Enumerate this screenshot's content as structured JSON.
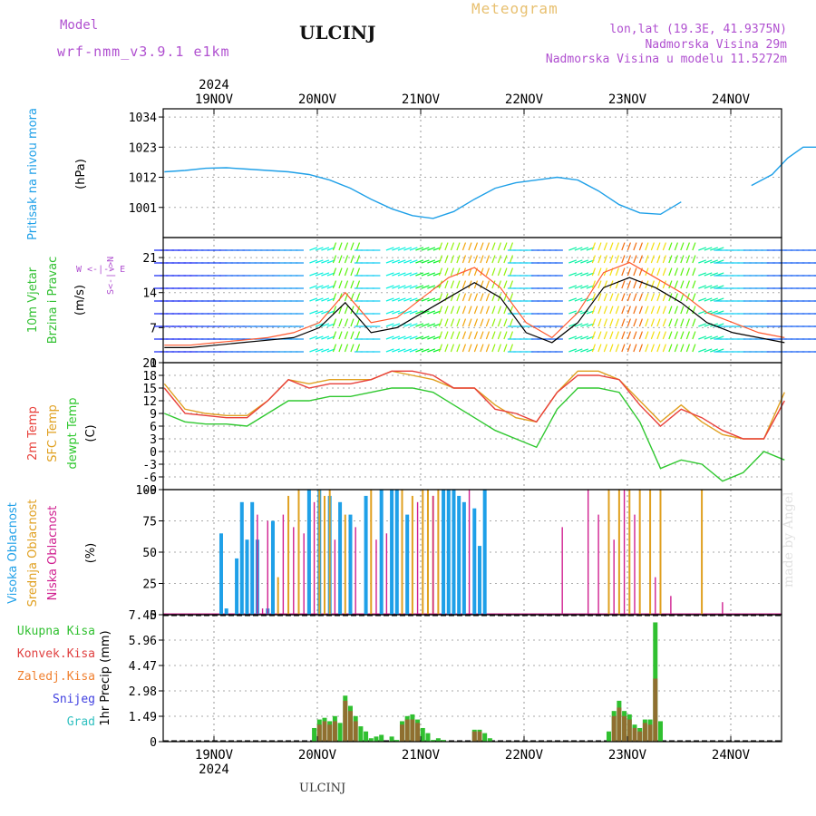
{
  "header": {
    "model_label": "Model",
    "model_name": "wrf-nmm_v3.9.1 e1km",
    "station": "ULCINJ",
    "meteogram": "Meteogram",
    "location": "lon,lat (19.3E, 41.9375N)",
    "elevation": "Nadmorska Visina 29m",
    "model_elevation": "Nadmorska Visina u modelu 11.5272m",
    "footer_station": "ULCINJ",
    "watermark": "made by Angel"
  },
  "colors": {
    "pressure": "#1fa0e8",
    "temp": "#e8403a",
    "sfc_temp": "#e0a020",
    "dewpt": "#30c830",
    "cloud_high": "#1fa0e8",
    "cloud_mid": "#e0a020",
    "cloud_low": "#d02090",
    "precip_total": "#30c030",
    "precip_conv": "#e04040",
    "header_purple": "#b050d0",
    "meteogram_gold": "#e8c070"
  },
  "chart_data": [
    {
      "type": "line",
      "id": "pressure",
      "y_labels": [
        "Pritisak na nivou mora",
        "(hPa)"
      ],
      "ylim": [
        990,
        1037
      ],
      "yticks": [
        1001,
        1012,
        1023,
        1034
      ],
      "x_day": [
        0,
        0.2,
        0.4,
        0.6,
        0.8,
        1.0,
        1.2,
        1.4,
        1.6,
        1.8,
        2.0,
        2.2,
        2.4,
        2.6,
        2.8,
        3.0,
        3.2,
        3.4,
        3.6,
        3.8,
        4.0,
        4.2,
        4.4,
        4.6,
        4.8,
        5.0,
        5.2,
        5.4,
        5.6,
        5.8,
        6.0
      ],
      "values": [
        1014,
        1014.5,
        1015.3,
        1015.5,
        1015,
        1014.5,
        1014,
        1013,
        1011,
        1008,
        1004,
        1000.5,
        998,
        997,
        999.5,
        1004,
        1008,
        1010,
        1011,
        1012,
        1011,
        1007,
        1002,
        999,
        998.5,
        1003,
        1009,
        1013,
        1019,
        1025,
        1030
      ],
      "x_tail": [
        5.2,
        5.4,
        5.55,
        5.7,
        5.9,
        6.1,
        6.3,
        6.5,
        6.85
      ],
      "values_tail": [
        1009,
        1013,
        1019,
        1023,
        1023,
        1029,
        1032,
        1033,
        1033
      ]
    },
    {
      "type": "line",
      "id": "wind",
      "y_labels": [
        "10m Vjetar",
        "Brzina i Pravac",
        "(m/s)"
      ],
      "ylim": [
        0,
        25
      ],
      "yticks": [
        0,
        7,
        14,
        21
      ],
      "compass": "W <-|-> E",
      "compass_v": "S<-|->N",
      "x_day": [
        0,
        0.25,
        0.5,
        0.75,
        1.0,
        1.25,
        1.5,
        1.75,
        2.0,
        2.25,
        2.5,
        2.75,
        3.0,
        3.25,
        3.5,
        3.75,
        4.0,
        4.25,
        4.5,
        4.75,
        5.0,
        5.25,
        5.5,
        5.75,
        6.0
      ],
      "speed": [
        3,
        3,
        3.5,
        4,
        4.5,
        5,
        7,
        12,
        6,
        7,
        10,
        13,
        16,
        13,
        6,
        4,
        8,
        15,
        17,
        15,
        12,
        8,
        6,
        5,
        4
      ],
      "gust": [
        3.5,
        3.5,
        4,
        4.5,
        5,
        6,
        8,
        14,
        8,
        9,
        13,
        17,
        19,
        15,
        8,
        5,
        10,
        18,
        20,
        17,
        14,
        10,
        8,
        6,
        5
      ]
    },
    {
      "type": "line",
      "id": "temperature",
      "y_labels": [
        "2m Temp",
        "SFC Temp",
        "dewpt Temp",
        "(C)"
      ],
      "ylim": [
        -9,
        21
      ],
      "yticks": [
        -9,
        -6,
        -3,
        0,
        3,
        6,
        9,
        12,
        15,
        18,
        21
      ],
      "x_day": [
        0,
        0.2,
        0.4,
        0.6,
        0.8,
        1.0,
        1.2,
        1.4,
        1.6,
        1.8,
        2.0,
        2.2,
        2.4,
        2.6,
        2.8,
        3.0,
        3.2,
        3.4,
        3.6,
        3.8,
        4.0,
        4.2,
        4.4,
        4.6,
        4.8,
        5.0,
        5.2,
        5.4,
        5.6,
        5.8,
        6.0
      ],
      "temp2m": [
        15,
        9,
        8.5,
        8,
        8,
        12,
        17,
        15,
        16,
        16,
        17,
        19,
        19,
        18,
        15,
        15,
        10,
        9,
        7,
        14,
        18,
        18,
        17,
        11,
        6,
        10,
        8,
        5,
        3,
        3,
        12
      ],
      "sfc": [
        16,
        10,
        9,
        8.5,
        8.5,
        12,
        17,
        16,
        17,
        17,
        17,
        19,
        18,
        17,
        15,
        15,
        11,
        8,
        7,
        14,
        19,
        19,
        17,
        12,
        7,
        11,
        7,
        4,
        3,
        3,
        14
      ],
      "dewpt": [
        9,
        7,
        6.5,
        6.5,
        6,
        9,
        12,
        12,
        13,
        13,
        14,
        15,
        15,
        14,
        11,
        8,
        5,
        3,
        1,
        10,
        15,
        15,
        14,
        7,
        -4,
        -2,
        -3,
        -7,
        -5,
        0,
        -2
      ]
    },
    {
      "type": "bar",
      "id": "clouds",
      "y_labels": [
        "Visoka Oblacnost",
        "Srednja Oblacnost",
        "Niska Oblacnost",
        "(%)"
      ],
      "ylim": [
        0,
        100
      ],
      "yticks": [
        0,
        25,
        50,
        75,
        100
      ],
      "high": {
        "x_day": [
          0.55,
          0.6,
          0.7,
          0.75,
          0.8,
          0.85,
          0.9,
          1.0,
          1.05,
          1.4,
          1.5,
          1.6,
          1.7,
          1.8,
          1.95,
          2.1,
          2.2,
          2.25,
          2.35,
          2.7,
          2.75,
          2.8,
          2.85,
          2.9,
          3.0,
          3.05,
          3.1
        ],
        "values": [
          65,
          5,
          45,
          90,
          60,
          90,
          60,
          5,
          75,
          100,
          100,
          95,
          90,
          80,
          95,
          100,
          100,
          100,
          80,
          100,
          100,
          100,
          95,
          90,
          85,
          55,
          100
        ]
      },
      "mid": {
        "x_day": [
          1.1,
          1.2,
          1.3,
          1.5,
          1.55,
          1.6,
          1.75,
          2.0,
          2.3,
          2.4,
          2.5,
          2.55,
          2.6,
          2.65,
          4.3,
          4.4,
          4.5,
          4.6,
          4.7,
          4.8,
          5.2
        ],
        "values": [
          30,
          95,
          100,
          100,
          95,
          100,
          80,
          100,
          100,
          95,
          100,
          100,
          95,
          100,
          100,
          100,
          100,
          100,
          100,
          100,
          100
        ]
      },
      "low": {
        "x_day": [
          0.9,
          0.95,
          1.0,
          1.15,
          1.25,
          1.35,
          1.45,
          1.65,
          1.85,
          2.05,
          2.15,
          2.45,
          2.6,
          2.95,
          3.85,
          4.1,
          4.2,
          4.35,
          4.45,
          4.55,
          4.75,
          4.9,
          5.4
        ],
        "values": [
          80,
          5,
          75,
          80,
          70,
          65,
          90,
          60,
          70,
          60,
          65,
          90,
          95,
          100,
          70,
          100,
          80,
          60,
          100,
          80,
          30,
          15,
          10
        ]
      }
    },
    {
      "type": "bar",
      "id": "precip",
      "y_labels": [
        "1hr Precip",
        "(mm)"
      ],
      "ylim": [
        0,
        7.45
      ],
      "yticks": [
        0,
        1.49,
        2.98,
        4.47,
        5.96,
        7.45
      ],
      "legend": [
        "Ukupna Kisa",
        "Konvek.Kisa",
        "Zaledj.Kisa",
        "Snijeg",
        "Grad"
      ],
      "legend_colors": [
        "#30c030",
        "#e04040",
        "#f08030",
        "#4040e0",
        "#30c0c0"
      ],
      "total": {
        "x_day": [
          1.45,
          1.5,
          1.55,
          1.6,
          1.65,
          1.7,
          1.75,
          1.8,
          1.85,
          1.9,
          1.95,
          2.0,
          2.05,
          2.1,
          2.2,
          2.25,
          2.3,
          2.35,
          2.4,
          2.45,
          2.5,
          2.55,
          2.6,
          2.65,
          2.7,
          3.0,
          3.05,
          3.1,
          3.15,
          4.3,
          4.35,
          4.4,
          4.45,
          4.5,
          4.55,
          4.6,
          4.65,
          4.7,
          4.75,
          4.8
        ],
        "values": [
          0.8,
          1.3,
          1.4,
          1.2,
          1.5,
          1.1,
          2.7,
          2.1,
          1.5,
          0.9,
          0.6,
          0.2,
          0.3,
          0.4,
          0.3,
          0.1,
          1.2,
          1.5,
          1.6,
          1.3,
          0.8,
          0.5,
          0.1,
          0.2,
          0.1,
          0.7,
          0.7,
          0.5,
          0.2,
          0.6,
          1.8,
          2.4,
          1.8,
          1.6,
          1.0,
          0.8,
          1.3,
          1.3,
          7.0,
          1.2
        ]
      },
      "conv": {
        "x_day": [
          1.5,
          1.55,
          1.6,
          1.65,
          1.75,
          1.8,
          1.85,
          2.3,
          2.35,
          2.4,
          2.45,
          3.0,
          3.05,
          4.35,
          4.4,
          4.45,
          4.5,
          4.55,
          4.6,
          4.65,
          4.7,
          4.75
        ],
        "values": [
          1.0,
          1.2,
          1.0,
          1.2,
          2.4,
          1.8,
          1.2,
          1.0,
          1.3,
          1.3,
          1.1,
          0.6,
          0.6,
          1.5,
          2.0,
          1.5,
          1.3,
          0.8,
          0.6,
          1.1,
          1.0,
          3.7
        ]
      }
    }
  ],
  "x_axis": {
    "year": "2024",
    "days": [
      "19NOV",
      "20NOV",
      "21NOV",
      "22NOV",
      "23NOV",
      "24NOV"
    ]
  }
}
